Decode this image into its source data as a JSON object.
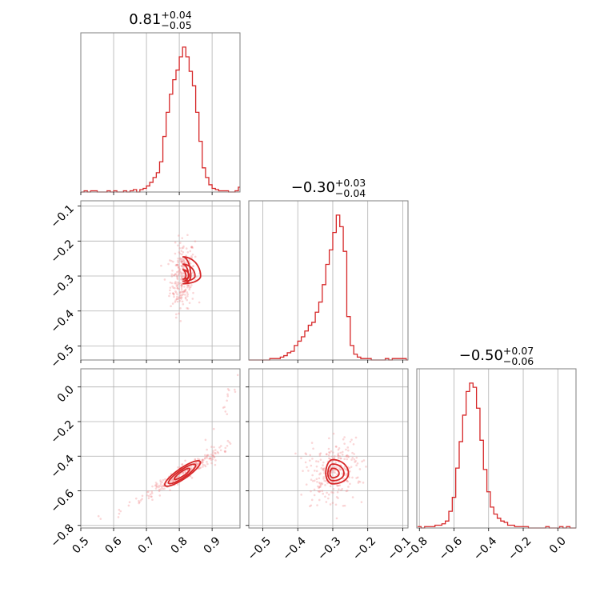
{
  "chart_data": {
    "type": "corner",
    "color": "#d62728",
    "parameters": [
      {
        "median": "0.81",
        "upper": "+0.04",
        "lower": "−0.05",
        "range": [
          0.5,
          0.985
        ],
        "ticks": [
          0.5,
          0.6,
          0.7,
          0.8,
          0.9
        ],
        "tick_labels": [
          "0.5",
          "0.6",
          "0.7",
          "0.8",
          "0.9"
        ]
      },
      {
        "median": "−0.30",
        "upper": "+0.03",
        "lower": "−0.04",
        "range": [
          -0.54,
          -0.085
        ],
        "ticks": [
          -0.5,
          -0.4,
          -0.3,
          -0.2,
          -0.1
        ],
        "tick_labels": [
          "−0.5",
          "−0.4",
          "−0.3",
          "−0.2",
          "−0.1"
        ]
      },
      {
        "median": "−0.50",
        "upper": "+0.07",
        "lower": "−0.06",
        "range": [
          -0.815,
          0.105
        ],
        "ticks": [
          -0.8,
          -0.6,
          -0.4,
          -0.2,
          0.0
        ],
        "tick_labels": [
          "−0.8",
          "−0.6",
          "−0.4",
          "−0.2",
          "0.0"
        ]
      }
    ],
    "marginal_histograms": [
      {
        "x": [
          0.5,
          0.51,
          0.52,
          0.53,
          0.54,
          0.55,
          0.56,
          0.57,
          0.58,
          0.59,
          0.6,
          0.61,
          0.62,
          0.63,
          0.64,
          0.65,
          0.66,
          0.67,
          0.68,
          0.69,
          0.7,
          0.71,
          0.72,
          0.73,
          0.74,
          0.75,
          0.76,
          0.77,
          0.78,
          0.79,
          0.8,
          0.81,
          0.82,
          0.83,
          0.84,
          0.85,
          0.86,
          0.87,
          0.88,
          0.89,
          0.9,
          0.91,
          0.92,
          0.93,
          0.94,
          0.95,
          0.96,
          0.97,
          0.98
        ],
        "counts": [
          0,
          1,
          0,
          1,
          1,
          0,
          0,
          0,
          1,
          0,
          1,
          0,
          0,
          1,
          0,
          1,
          2,
          0,
          2,
          3,
          5,
          8,
          12,
          16,
          25,
          46,
          66,
          81,
          93,
          101,
          112,
          120,
          112,
          100,
          88,
          66,
          42,
          20,
          12,
          6,
          3,
          2,
          1,
          1,
          1,
          0,
          0,
          1,
          4
        ]
      },
      {
        "x": [
          -0.54,
          -0.53,
          -0.52,
          -0.51,
          -0.5,
          -0.49,
          -0.48,
          -0.47,
          -0.46,
          -0.45,
          -0.44,
          -0.43,
          -0.42,
          -0.41,
          -0.4,
          -0.39,
          -0.38,
          -0.37,
          -0.36,
          -0.35,
          -0.34,
          -0.33,
          -0.32,
          -0.31,
          -0.3,
          -0.29,
          -0.28,
          -0.27,
          -0.26,
          -0.25,
          -0.24,
          -0.23,
          -0.22,
          -0.21,
          -0.2,
          -0.19,
          -0.18,
          -0.17,
          -0.16,
          -0.15,
          -0.14,
          -0.13,
          -0.12,
          -0.11,
          -0.1,
          -0.09
        ],
        "counts": [
          0,
          0,
          0,
          0,
          0,
          0,
          1,
          1,
          1,
          2,
          3,
          5,
          6,
          10,
          13,
          16,
          20,
          24,
          26,
          33,
          40,
          52,
          66,
          76,
          88,
          100,
          92,
          75,
          30,
          10,
          4,
          2,
          1,
          1,
          1,
          0,
          0,
          0,
          0,
          1,
          0,
          1,
          1,
          1,
          1,
          0
        ]
      },
      {
        "x": [
          -0.81,
          -0.79,
          -0.77,
          -0.75,
          -0.73,
          -0.71,
          -0.69,
          -0.67,
          -0.65,
          -0.63,
          -0.61,
          -0.59,
          -0.57,
          -0.55,
          -0.53,
          -0.51,
          -0.49,
          -0.47,
          -0.45,
          -0.43,
          -0.41,
          -0.39,
          -0.37,
          -0.35,
          -0.33,
          -0.31,
          -0.29,
          -0.27,
          -0.25,
          -0.23,
          -0.21,
          -0.19,
          -0.17,
          -0.15,
          -0.13,
          -0.11,
          -0.09,
          -0.07,
          -0.05,
          -0.03,
          -0.01,
          0.01,
          0.03,
          0.05,
          0.07,
          0.09
        ],
        "counts": [
          1,
          0,
          1,
          1,
          1,
          2,
          2,
          3,
          5,
          12,
          22,
          43,
          62,
          81,
          98,
          104,
          101,
          86,
          63,
          42,
          26,
          15,
          10,
          7,
          5,
          4,
          2,
          2,
          1,
          1,
          1,
          1,
          0,
          0,
          0,
          0,
          0,
          1,
          0,
          0,
          0,
          1,
          0,
          1,
          0,
          0
        ]
      }
    ],
    "joint_panels": [
      {
        "x_param": 0,
        "y_param": 1,
        "centroid": [
          0.81,
          -0.3
        ],
        "levels": [
          [
            0.055,
            -0.025,
            0.055,
            0.022
          ],
          [
            0.038,
            -0.018,
            0.034,
            0.015
          ],
          [
            0.02,
            -0.01,
            0.018,
            0.009
          ]
        ]
      },
      {
        "x_param": 0,
        "y_param": 2,
        "centroid": [
          0.81,
          -0.5
        ],
        "levels": [
          [
            0.075,
            0.075,
            0.02,
            0.02
          ],
          [
            0.055,
            0.06,
            0.014,
            0.015
          ],
          [
            0.03,
            0.035,
            0.008,
            0.009
          ]
        ]
      },
      {
        "x_param": 1,
        "y_param": 2,
        "centroid": [
          -0.3,
          -0.5
        ],
        "levels": [
          [
            0.045,
            0.02,
            0.08,
            0.06
          ],
          [
            0.032,
            0.014,
            0.055,
            0.042
          ],
          [
            0.018,
            0.008,
            0.03,
            0.024
          ]
        ]
      }
    ]
  }
}
